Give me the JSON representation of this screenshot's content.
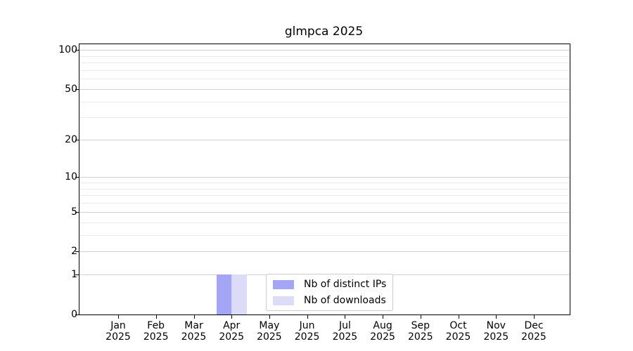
{
  "title": "glmpca 2025",
  "chart_data": {
    "type": "bar",
    "title": "glmpca 2025",
    "xlabel": "",
    "ylabel": "",
    "categories": [
      "Jan 2025",
      "Feb 2025",
      "Mar 2025",
      "Apr 2025",
      "May 2025",
      "Jun 2025",
      "Jul 2025",
      "Aug 2025",
      "Sep 2025",
      "Oct 2025",
      "Nov 2025",
      "Dec 2025"
    ],
    "series": [
      {
        "name": "Nb of distinct IPs",
        "color": "#a5a5f6",
        "values": [
          0,
          0,
          0,
          1,
          0,
          0,
          0,
          0,
          0,
          0,
          0,
          0
        ]
      },
      {
        "name": "Nb of downloads",
        "color": "#dcdcf9",
        "values": [
          0,
          0,
          0,
          1,
          0,
          0,
          0,
          0,
          0,
          0,
          0,
          0
        ]
      }
    ],
    "yscale": "log1p",
    "ylim": [
      0,
      110.3
    ],
    "y_major_ticks": [
      0,
      1,
      2,
      5,
      10,
      20,
      50,
      100
    ],
    "y_minor_ticks": [
      3,
      4,
      6,
      7,
      8,
      9,
      30,
      40,
      60,
      70,
      80,
      90
    ],
    "grid": "horizontal",
    "legend_position": "lower center (inside plot)"
  },
  "legend": {
    "items": [
      {
        "label": "Nb of distinct IPs",
        "color": "#a5a5f6"
      },
      {
        "label": "Nb of downloads",
        "color": "#dcdcf9"
      }
    ]
  },
  "colors": {
    "background": "#ffffff",
    "axis": "#000000",
    "grid_major": "#d0d0d0",
    "grid_minor": "#eaeaea",
    "legend_border": "#cccccc",
    "text": "#000000"
  }
}
